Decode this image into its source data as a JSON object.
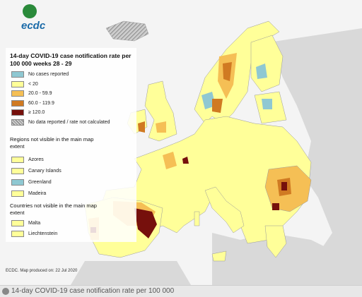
{
  "logo": "ecdc",
  "title": "14-day COVID-19 case notification rate per 100 000 weeks 28 - 29",
  "legend": [
    {
      "label": "No cases reported",
      "color": "#8fc8d2"
    },
    {
      "label": "< 20",
      "color": "#ffff99"
    },
    {
      "label": "20.0 - 59.9",
      "color": "#f5bf55"
    },
    {
      "label": "60.0 - 119.9",
      "color": "#d07a22"
    },
    {
      "label": "≥ 120.0",
      "color": "#76100c"
    },
    {
      "label": "No data reported / rate not calculated",
      "color": "#aaaaaa"
    }
  ],
  "regions_header": "Regions not visible in the main map extent",
  "regions": [
    {
      "label": "Azores",
      "color": "#ffff99"
    },
    {
      "label": "Canary Islands",
      "color": "#ffff99"
    },
    {
      "label": "Greenland",
      "color": "#8fc8d2"
    },
    {
      "label": "Madeira",
      "color": "#ffff99"
    }
  ],
  "countries_header": "Countries not visible in the main map extent",
  "countries": [
    {
      "label": "Malta",
      "color": "#ffff99"
    },
    {
      "label": "Liechtenstein",
      "color": "#ffff99"
    }
  ],
  "footer": "ECDC. Map produced on: 22 Jul 2020",
  "caption": "14-day COVID-19 case notification rate per 100 000"
}
